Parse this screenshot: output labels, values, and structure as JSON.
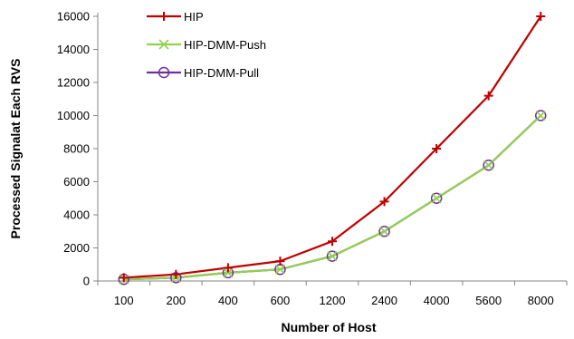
{
  "chart_data": {
    "type": "line",
    "title": "",
    "xlabel": "Number of Host",
    "ylabel": "Processed Signalat Each RVS",
    "categories": [
      "100",
      "200",
      "400",
      "600",
      "1200",
      "2400",
      "4000",
      "5600",
      "8000"
    ],
    "ylim": [
      0,
      16000
    ],
    "yticks": [
      0,
      2000,
      4000,
      6000,
      8000,
      10000,
      12000,
      14000,
      16000
    ],
    "grid": false,
    "legend_position": "top-left",
    "series": [
      {
        "name": "HIP",
        "marker": "plus",
        "color": "#c00000",
        "values": [
          200,
          400,
          800,
          1200,
          2400,
          4800,
          8000,
          11200,
          16000
        ]
      },
      {
        "name": "HIP-DMM-Push",
        "marker": "x",
        "color": "#92d050",
        "values": [
          100,
          200,
          500,
          700,
          1500,
          3000,
          5000,
          7000,
          10000
        ]
      },
      {
        "name": "HIP-DMM-Pull",
        "marker": "circle",
        "color": "#7030a0",
        "values": [
          100,
          200,
          500,
          700,
          1500,
          3000,
          5000,
          7000,
          10000
        ]
      }
    ]
  }
}
